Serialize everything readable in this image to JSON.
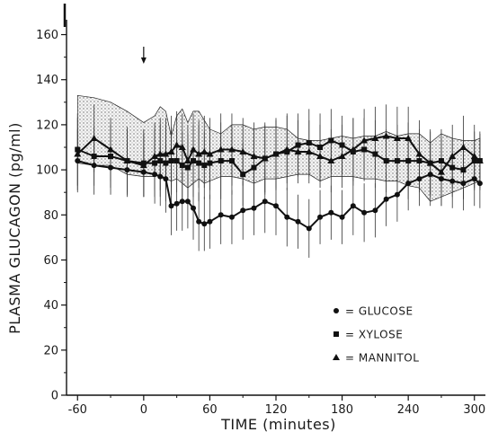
{
  "chart_data": {
    "type": "line",
    "title": "",
    "xlabel": "TIME (minutes)",
    "ylabel": "PLASMA GLUCAGON (pg/ml)",
    "xlim": [
      -70,
      310
    ],
    "ylim": [
      0,
      165
    ],
    "xticks": [
      -60,
      0,
      60,
      120,
      180,
      240,
      300
    ],
    "xtick_labels": [
      "-60",
      "0",
      "60",
      "120",
      "180",
      "240",
      "300"
    ],
    "yticks": [
      0,
      20,
      40,
      60,
      80,
      100,
      120,
      140,
      160
    ],
    "ytick_labels": [
      "0",
      "20",
      "40",
      "60",
      "80",
      "100",
      "120",
      "140",
      "160"
    ],
    "grid": false,
    "legend_position": "bottom-right",
    "arrow_annotation_x": 0,
    "mannitol_range": {
      "x": [
        -60,
        -45,
        -30,
        -15,
        0,
        10,
        15,
        20,
        25,
        30,
        35,
        40,
        45,
        50,
        55,
        60,
        70,
        80,
        90,
        100,
        110,
        120,
        130,
        140,
        150,
        160,
        170,
        180,
        190,
        200,
        210,
        220,
        230,
        240,
        250,
        260,
        270,
        280,
        290,
        300,
        305
      ],
      "upper": [
        133,
        132,
        130,
        126,
        121,
        124,
        128,
        126,
        115,
        124,
        127,
        121,
        126,
        126,
        122,
        118,
        116,
        120,
        120,
        118,
        119,
        119,
        118,
        114,
        113,
        113,
        114,
        115,
        114,
        115,
        115,
        117,
        115,
        116,
        116,
        112,
        116,
        114,
        113,
        113,
        114
      ],
      "lower": [
        103,
        102,
        102,
        98,
        97,
        97,
        98,
        96,
        95,
        96,
        94,
        92,
        94,
        96,
        94,
        95,
        97,
        97,
        96,
        94,
        96,
        96,
        97,
        98,
        98,
        95,
        97,
        97,
        97,
        96,
        96,
        95,
        95,
        93,
        92,
        86,
        88,
        90,
        92,
        94,
        95
      ]
    },
    "series": [
      {
        "name": "GLUCOSE",
        "marker": "circle",
        "x": [
          -60,
          -45,
          -30,
          -15,
          0,
          10,
          15,
          20,
          25,
          30,
          35,
          40,
          45,
          50,
          55,
          60,
          70,
          80,
          90,
          100,
          110,
          120,
          130,
          140,
          150,
          160,
          170,
          180,
          190,
          200,
          210,
          220,
          230,
          240,
          250,
          260,
          270,
          280,
          290,
          300,
          305
        ],
        "y": [
          104,
          102,
          101,
          100,
          99,
          98,
          97,
          96,
          84,
          85,
          86,
          86,
          83,
          77,
          76,
          77,
          80,
          79,
          82,
          83,
          86,
          84,
          79,
          77,
          74,
          79,
          81,
          79,
          84,
          81,
          82,
          87,
          89,
          94,
          96,
          98,
          96,
          95,
          94,
          96,
          94
        ],
        "err": [
          14,
          13,
          12,
          12,
          11,
          13,
          13,
          15,
          13,
          12,
          13,
          12,
          14,
          13,
          12,
          12,
          13,
          12,
          13,
          12,
          14,
          13,
          13,
          12,
          13,
          12,
          12,
          12,
          13,
          13,
          12,
          12,
          12,
          12,
          12,
          14,
          12,
          12,
          12,
          12,
          11
        ]
      },
      {
        "name": "XYLOSE",
        "marker": "square",
        "x": [
          -60,
          -45,
          -30,
          -15,
          0,
          10,
          15,
          20,
          25,
          30,
          35,
          40,
          45,
          50,
          55,
          60,
          70,
          80,
          90,
          100,
          110,
          120,
          130,
          140,
          150,
          160,
          170,
          180,
          190,
          200,
          210,
          220,
          230,
          240,
          250,
          260,
          270,
          280,
          290,
          300,
          305
        ],
        "y": [
          109,
          106,
          106,
          104,
          103,
          103,
          104,
          103,
          104,
          104,
          102,
          101,
          104,
          103,
          102,
          103,
          104,
          104,
          98,
          101,
          105,
          107,
          108,
          111,
          112,
          110,
          113,
          111,
          108,
          109,
          107,
          104,
          104,
          104,
          104,
          103,
          104,
          101,
          100,
          104,
          104
        ],
        "err": [
          16,
          13,
          14,
          15,
          15,
          15,
          16,
          17,
          15,
          14,
          15,
          15,
          16,
          17,
          15,
          16,
          17,
          15,
          14,
          17,
          16,
          16,
          17,
          14,
          15,
          15,
          14,
          13,
          15,
          14,
          15,
          14,
          16,
          17,
          14,
          14,
          14,
          13,
          13,
          13,
          12
        ]
      },
      {
        "name": "MANNITOL",
        "marker": "triangle",
        "x": [
          -60,
          -45,
          -30,
          -15,
          0,
          10,
          15,
          20,
          25,
          30,
          35,
          40,
          45,
          50,
          55,
          60,
          70,
          80,
          90,
          100,
          110,
          120,
          130,
          140,
          150,
          160,
          170,
          180,
          190,
          200,
          210,
          220,
          230,
          240,
          250,
          260,
          270,
          280,
          290,
          300,
          305
        ],
        "y": [
          107,
          114,
          109,
          104,
          102,
          106,
          107,
          107,
          108,
          111,
          110,
          104,
          109,
          107,
          108,
          107,
          109,
          109,
          108,
          106,
          105,
          107,
          109,
          108,
          108,
          106,
          104,
          106,
          109,
          113,
          114,
          115,
          114,
          114,
          107,
          103,
          99,
          106,
          110,
          106,
          104
        ],
        "err": [
          16,
          15,
          14,
          14,
          14,
          15,
          16,
          16,
          16,
          15,
          15,
          16,
          16,
          15,
          16,
          16,
          16,
          16,
          15,
          15,
          15,
          15,
          15,
          14,
          14,
          14,
          14,
          14,
          14,
          14,
          14,
          14,
          14,
          14,
          15,
          15,
          15,
          14,
          14,
          14,
          13
        ]
      }
    ],
    "legend": [
      {
        "marker": "circle",
        "label": "= GLUCOSE"
      },
      {
        "marker": "square",
        "label": "= XYLOSE"
      },
      {
        "marker": "triangle",
        "label": "= MANNITOL"
      }
    ]
  }
}
